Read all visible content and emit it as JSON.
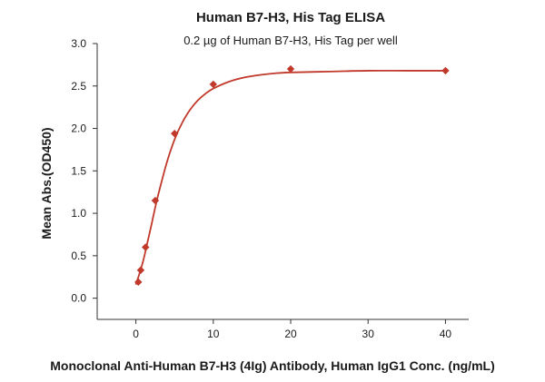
{
  "chart_data": {
    "type": "scatter",
    "title": "Human B7-H3, His Tag ELISA",
    "subtitle": "0.2 µg of Human B7-H3, His Tag per well",
    "xlabel": "Monoclonal Anti-Human B7-H3 (4Ig) Antibody, Human IgG1 Conc. (ng/mL)",
    "ylabel": "Mean Abs.(OD450)",
    "xlim": [
      -5,
      43
    ],
    "ylim": [
      -0.25,
      3.0
    ],
    "x_ticks": [
      0,
      10,
      20,
      30,
      40
    ],
    "y_ticks": [
      0.0,
      0.5,
      1.0,
      1.5,
      2.0,
      2.5,
      3.0
    ],
    "x_tick_labels": [
      "0",
      "10",
      "20",
      "30",
      "40"
    ],
    "y_tick_labels": [
      "0.0",
      "0.5",
      "1.0",
      "1.5",
      "2.0",
      "2.5",
      "3.0"
    ],
    "grid": false,
    "series": [
      {
        "marker": "diamond",
        "color": "#c0392b",
        "x": [
          0.3125,
          0.625,
          1.25,
          2.5,
          5,
          10,
          20,
          40
        ],
        "y": [
          0.19,
          0.33,
          0.6,
          1.15,
          1.94,
          2.52,
          2.7,
          2.68
        ]
      }
    ],
    "fit_curve": {
      "color": "#c0392b",
      "x": [
        0,
        0.5,
        1,
        1.5,
        2,
        2.5,
        3,
        4,
        5,
        6,
        7,
        8,
        9,
        10,
        12,
        14,
        16,
        18,
        20,
        25,
        30,
        35,
        40
      ],
      "y": [
        0.16,
        0.3,
        0.46,
        0.66,
        0.86,
        1.07,
        1.26,
        1.6,
        1.87,
        2.07,
        2.22,
        2.33,
        2.41,
        2.47,
        2.55,
        2.6,
        2.63,
        2.65,
        2.66,
        2.67,
        2.68,
        2.68,
        2.68
      ]
    }
  }
}
